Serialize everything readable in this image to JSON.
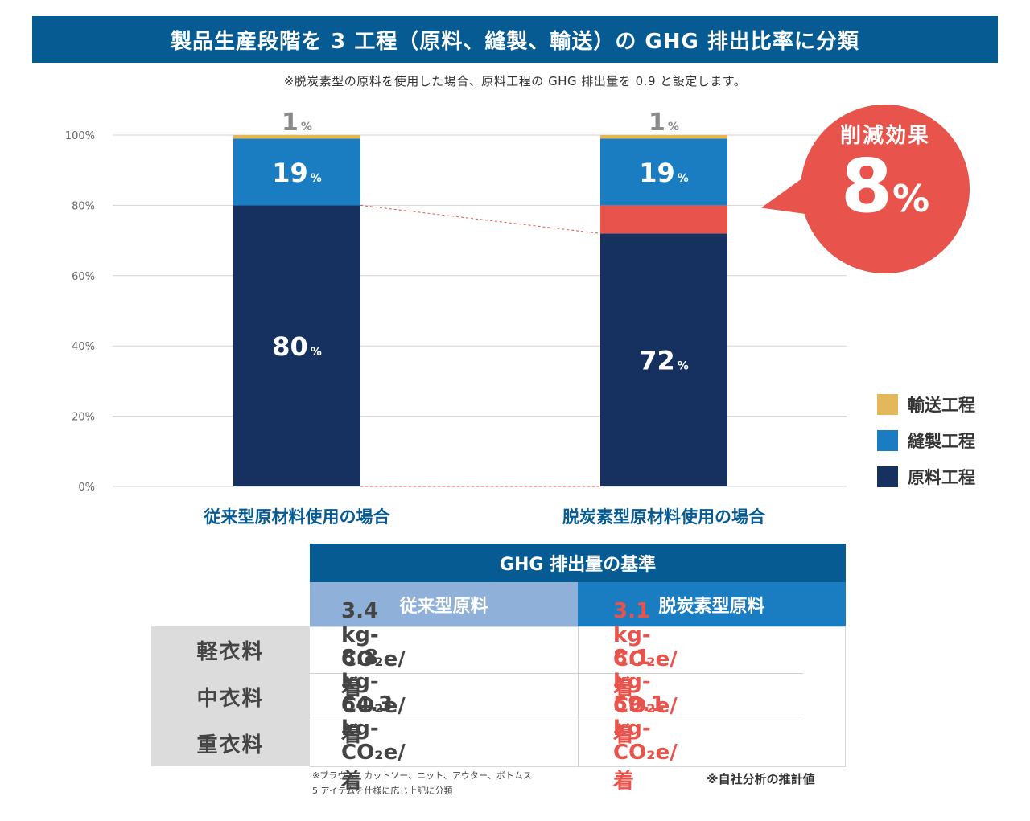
{
  "title": "製品生産段階を 3 工程（原料、縫製、輸送）の GHG 排出比率に分類",
  "subtitle": "※脱炭素型の原料を使用した場合、原料工程の GHG 排出量を 0.9 と設定します。",
  "colors": {
    "title_bg": "#075b93",
    "transport": "#e4b85a",
    "sewing": "#1a7cc1",
    "material": "#16315f",
    "reduction": "#e8534c",
    "category_text": "#075b93"
  },
  "chart_data": {
    "type": "bar",
    "stacked": true,
    "categories": [
      "従来型原材料使用の場合",
      "脱炭素型原材料使用の場合"
    ],
    "ylim": [
      0,
      100
    ],
    "yticks": [
      0,
      20,
      40,
      60,
      80,
      100
    ],
    "ytick_labels": [
      "0%",
      "20%",
      "40%",
      "60%",
      "80%",
      "100%"
    ],
    "grid": true,
    "legend_position": "right",
    "series": [
      {
        "name": "原料工程",
        "values": [
          80,
          72
        ],
        "labels": [
          "80",
          "72"
        ],
        "color": "#16315f"
      },
      {
        "name": "削減効果",
        "values": [
          0,
          8
        ],
        "labels": [
          "",
          ""
        ],
        "color": "#e8534c"
      },
      {
        "name": "縫製工程",
        "values": [
          19,
          19
        ],
        "labels": [
          "19",
          "19"
        ],
        "color": "#1a7cc1"
      },
      {
        "name": "輸送工程",
        "values": [
          1,
          1
        ],
        "labels": [
          "1",
          "1"
        ],
        "color": "#e4b85a"
      }
    ],
    "percent_unit": "%"
  },
  "legend": [
    {
      "label": "輸送工程",
      "color": "#e4b85a"
    },
    {
      "label": "縫製工程",
      "color": "#1a7cc1"
    },
    {
      "label": "原料工程",
      "color": "#16315f"
    }
  ],
  "callout": {
    "label": "削減効果",
    "value": "8",
    "unit": "%"
  },
  "table": {
    "header": "GHG 排出量の基準",
    "columns": [
      "従来型原料",
      "脱炭素型原料"
    ],
    "rows": [
      {
        "label": "軽衣料",
        "conventional": "3.4 kg-CO₂e/ 着",
        "decarbonized": "3.1 kg-CO₂e/ 着"
      },
      {
        "label": "中衣料",
        "conventional": "8.8 kg-CO₂e/ 着",
        "decarbonized": "8.1 kg-CO₂e/ 着"
      },
      {
        "label": "重衣料",
        "conventional": "64.3 kg-CO₂e/ 着",
        "decarbonized": "59.1 kg-CO₂e/ 着"
      }
    ]
  },
  "notes": {
    "left_line1": "※ブラウス、カットソー、ニット、アウター、ボトムス",
    "left_line2": "5 アイテムを仕様に応じ上記に分類",
    "right": "※自社分析の推計値"
  }
}
